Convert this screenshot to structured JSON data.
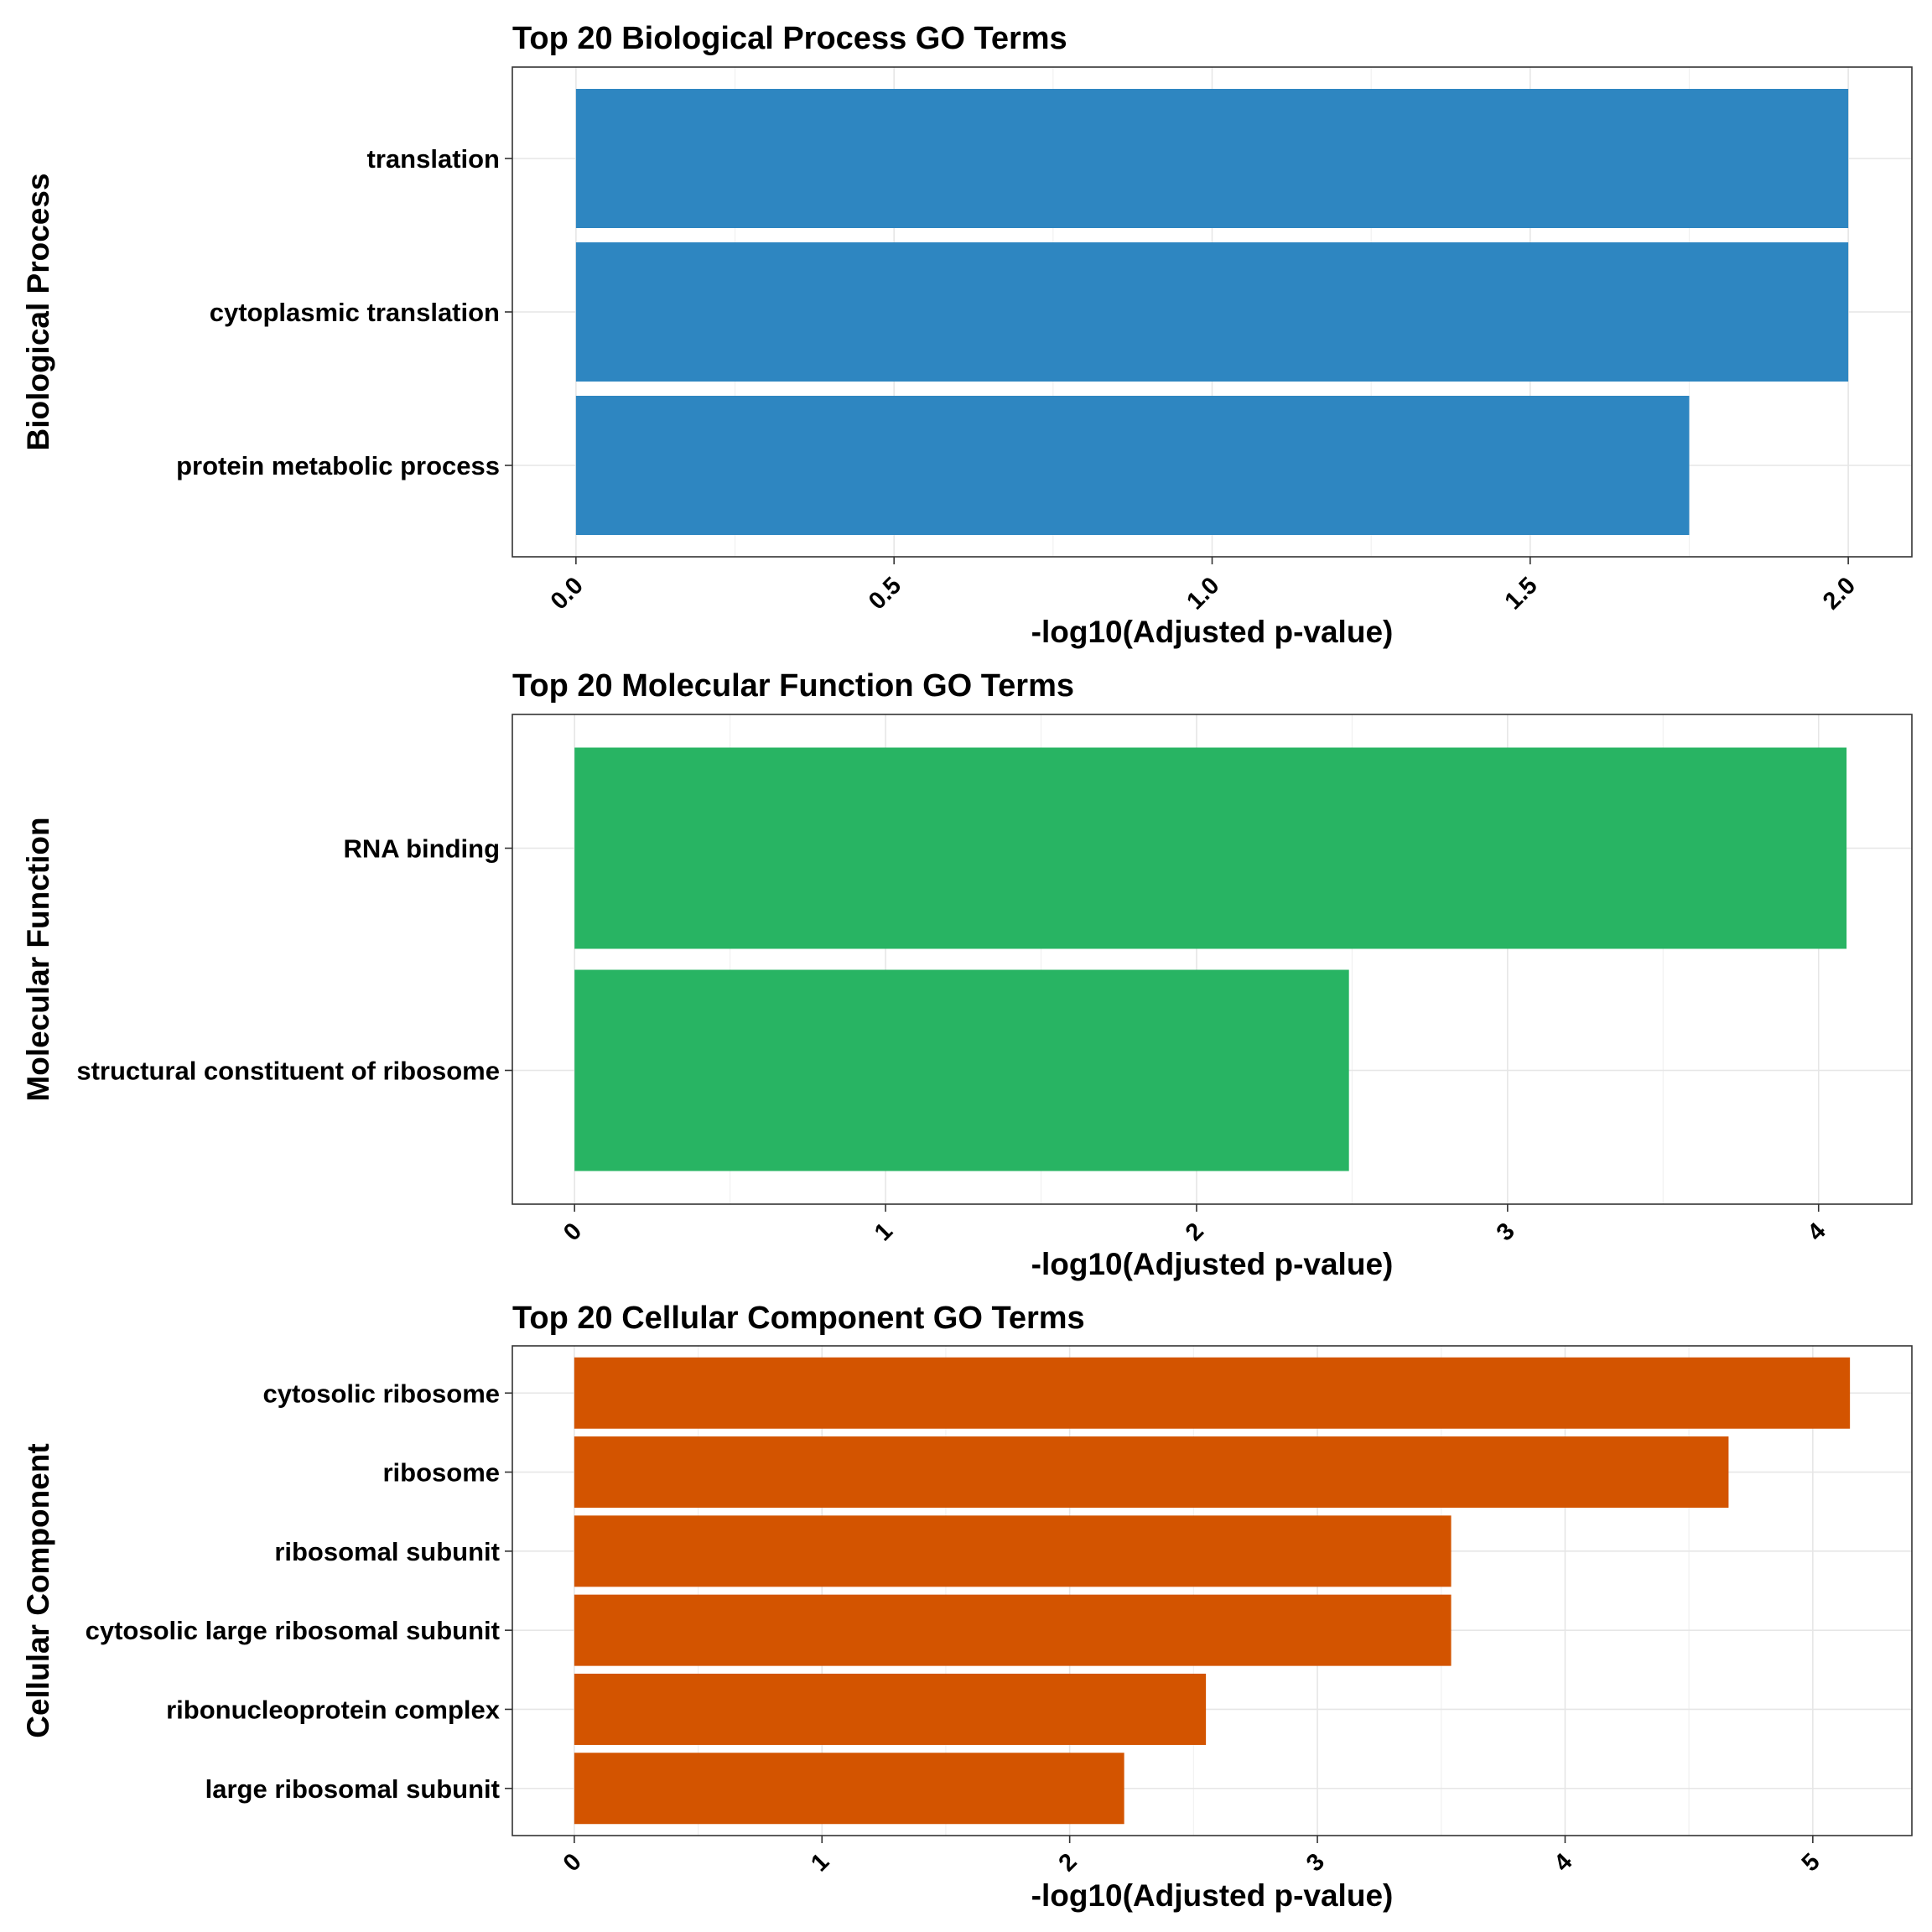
{
  "chart_data": [
    {
      "type": "bar",
      "orientation": "horizontal",
      "title": "Top 20 Biological Process GO Terms",
      "xlabel": "-log10(Adjusted p-value)",
      "ylabel": "Biological Process",
      "categories": [
        "translation",
        "cytoplasmic translation",
        "protein metabolic process"
      ],
      "values": [
        2.0,
        2.0,
        1.75
      ],
      "xlim": [
        -0.1,
        2.1
      ],
      "ticks": [
        0.0,
        0.5,
        1.0,
        1.5,
        2.0
      ],
      "tick_labels": [
        "0.0",
        "0.5",
        "1.0",
        "1.5",
        "2.0"
      ],
      "color": "#2E86C1",
      "grid": true
    },
    {
      "type": "bar",
      "orientation": "horizontal",
      "title": "Top 20 Molecular Function GO Terms",
      "xlabel": "-log10(Adjusted p-value)",
      "ylabel": "Molecular Function",
      "categories": [
        "RNA binding",
        "structural constituent of ribosome"
      ],
      "values": [
        4.09,
        2.49
      ],
      "xlim": [
        -0.2,
        4.3
      ],
      "ticks": [
        0,
        1,
        2,
        3,
        4
      ],
      "tick_labels": [
        "0",
        "1",
        "2",
        "3",
        "4"
      ],
      "color": "#28B463",
      "grid": true
    },
    {
      "type": "bar",
      "orientation": "horizontal",
      "title": "Top 20 Cellular Component GO Terms",
      "xlabel": "-log10(Adjusted p-value)",
      "ylabel": "Cellular Component",
      "categories": [
        "cytosolic ribosome",
        "ribosome",
        "ribosomal subunit",
        "cytosolic large ribosomal subunit",
        "ribonucleoprotein complex",
        "large ribosomal subunit"
      ],
      "values": [
        5.15,
        4.66,
        3.54,
        3.54,
        2.55,
        2.22
      ],
      "xlim": [
        -0.25,
        5.4
      ],
      "ticks": [
        0,
        1,
        2,
        3,
        4,
        5
      ],
      "tick_labels": [
        "0",
        "1",
        "2",
        "3",
        "4",
        "5"
      ],
      "color": "#D35400",
      "grid": true
    }
  ]
}
